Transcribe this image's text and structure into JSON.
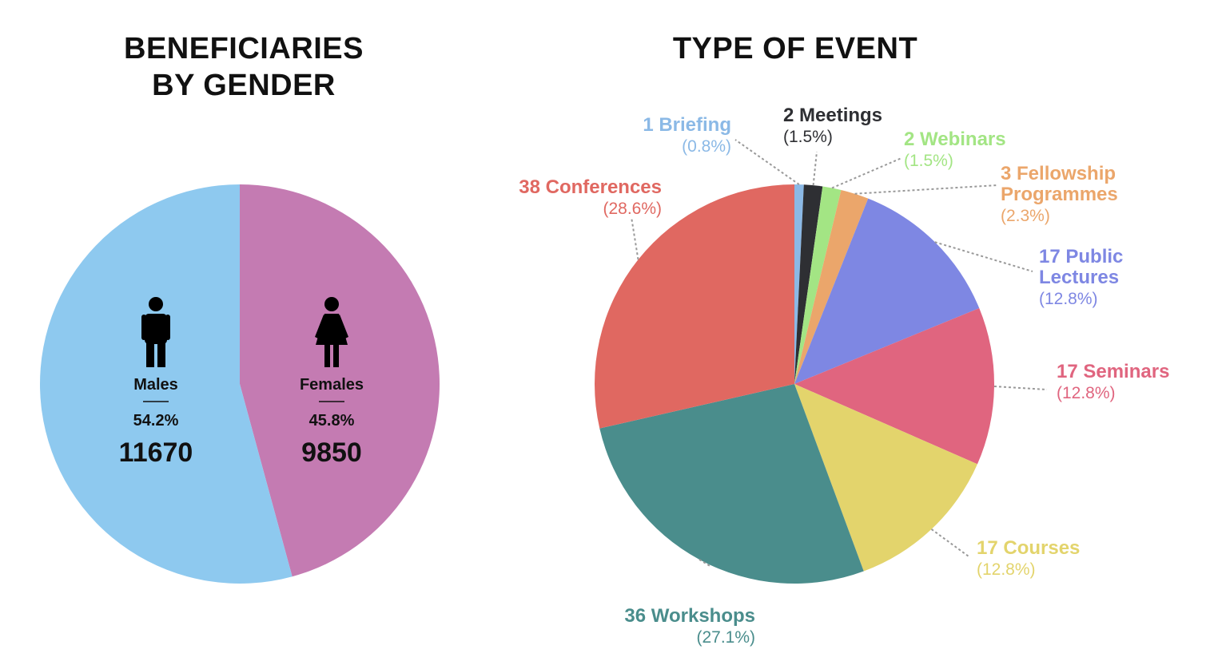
{
  "chart_data": [
    {
      "type": "pie",
      "title": "BENEFICIARIES BY GENDER",
      "title_lines": [
        "BENEFICIARIES",
        "BY GENDER"
      ],
      "slices": [
        {
          "name": "Males",
          "value": 11670,
          "percent": "54.2%",
          "color": "#8ec9ef",
          "icon": "male-icon"
        },
        {
          "name": "Females",
          "value": 9850,
          "percent": "45.8%",
          "color": "#c47bb2",
          "icon": "female-icon"
        }
      ]
    },
    {
      "type": "pie",
      "title": "TYPE OF EVENT",
      "slices": [
        {
          "count": 1,
          "name": "Briefing",
          "label_lines": [
            "1 Briefing"
          ],
          "percent": "(0.8%)",
          "color": "#8bb9e6"
        },
        {
          "count": 2,
          "name": "Meetings",
          "label_lines": [
            "2 Meetings"
          ],
          "percent": "(1.5%)",
          "color": "#2e2f33"
        },
        {
          "count": 2,
          "name": "Webinars",
          "label_lines": [
            "2 Webinars"
          ],
          "percent": "(1.5%)",
          "color": "#a3e584"
        },
        {
          "count": 3,
          "name": "Fellowship Programmes",
          "label_lines": [
            "3 Fellowship",
            "Programmes"
          ],
          "percent": "(2.3%)",
          "color": "#eba66b"
        },
        {
          "count": 17,
          "name": "Public Lectures",
          "label_lines": [
            "17 Public",
            "Lectures"
          ],
          "percent": "(12.8%)",
          "color": "#7e87e3"
        },
        {
          "count": 17,
          "name": "Seminars",
          "label_lines": [
            "17 Seminars"
          ],
          "percent": "(12.8%)",
          "color": "#e0657f"
        },
        {
          "count": 17,
          "name": "Courses",
          "label_lines": [
            "17 Courses"
          ],
          "percent": "(12.8%)",
          "color": "#e3d46c"
        },
        {
          "count": 36,
          "name": "Workshops",
          "label_lines": [
            "36 Workshops"
          ],
          "percent": "(27.1%)",
          "color": "#4a8d8c"
        },
        {
          "count": 38,
          "name": "Conferences",
          "label_lines": [
            "38 Conferences"
          ],
          "percent": "(28.6%)",
          "color": "#e06861"
        }
      ]
    }
  ]
}
